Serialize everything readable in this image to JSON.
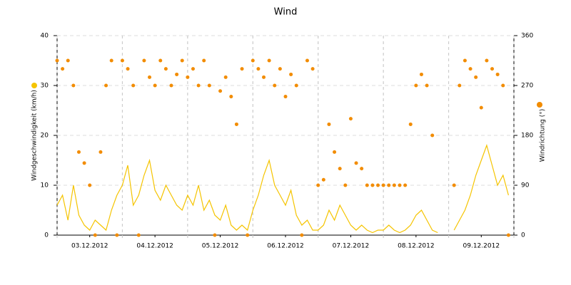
{
  "chart_data": {
    "type": "line_scatter",
    "title": "Wind",
    "ylabel": "Windgeschwindigkeit (km/h)",
    "y2label": "Windrichtung (°)",
    "x": [
      0,
      2,
      4,
      6,
      8,
      10,
      12,
      14,
      16,
      18,
      20,
      22,
      24,
      26,
      28,
      30,
      32,
      34,
      36,
      38,
      40,
      42,
      44,
      46,
      48,
      50,
      52,
      54,
      56,
      58,
      60,
      62,
      64,
      66,
      68,
      70,
      72,
      74,
      76,
      78,
      80,
      82,
      84,
      86,
      88,
      90,
      92,
      94,
      96,
      98,
      100,
      102,
      104,
      106,
      108,
      110,
      112,
      114,
      116,
      118,
      120,
      122,
      124,
      126,
      128,
      130,
      132,
      134,
      136,
      138,
      140,
      142,
      144,
      146,
      148,
      150,
      152,
      154,
      156,
      158,
      160,
      162,
      164,
      166
    ],
    "series": [
      {
        "name": "Windgeschwindigkeit (km/h)",
        "color": "#f5c400",
        "axis": "y",
        "values": [
          6,
          8,
          3,
          10,
          4,
          2,
          1,
          3,
          2,
          1,
          5,
          8,
          10,
          14,
          6,
          8,
          12,
          15,
          9,
          7,
          10,
          8,
          6,
          5,
          8,
          6,
          10,
          5,
          7,
          4,
          3,
          6,
          2,
          1,
          2,
          1,
          5,
          8,
          12,
          15,
          10,
          8,
          6,
          9,
          4,
          2,
          3,
          1,
          1,
          2,
          5,
          3,
          6,
          4,
          2,
          1,
          2,
          1,
          0.5,
          1,
          1,
          2,
          1,
          0.5,
          1,
          2,
          4,
          5,
          3,
          1,
          0.5,
          null,
          null,
          1,
          3,
          5,
          8,
          12,
          15,
          18,
          14,
          10,
          12,
          8
        ]
      },
      {
        "name": "Windrichtung (°)",
        "color": "#f28c00",
        "axis": "y2",
        "values": [
          315,
          300,
          315,
          270,
          150,
          130,
          90,
          0,
          150,
          270,
          315,
          0,
          315,
          300,
          270,
          0,
          315,
          285,
          270,
          315,
          300,
          270,
          290,
          315,
          285,
          300,
          270,
          315,
          270,
          0,
          260,
          285,
          250,
          200,
          300,
          0,
          315,
          300,
          285,
          315,
          270,
          300,
          250,
          290,
          270,
          0,
          315,
          300,
          90,
          100,
          200,
          150,
          120,
          90,
          210,
          130,
          120,
          90,
          90,
          90,
          90,
          90,
          90,
          90,
          90,
          200,
          270,
          290,
          270,
          180,
          null,
          null,
          null,
          90,
          270,
          315,
          300,
          285,
          230,
          315,
          300,
          290,
          270,
          0
        ]
      }
    ],
    "xlim": [
      0,
      168
    ],
    "xticks": [
      {
        "value": 12,
        "label": "03.12.2012"
      },
      {
        "value": 36,
        "label": "04.12.2012"
      },
      {
        "value": 60,
        "label": "05.12.2012"
      },
      {
        "value": 84,
        "label": "06.12.2012"
      },
      {
        "value": 108,
        "label": "07.12.2012"
      },
      {
        "value": 132,
        "label": "08.12.2012"
      },
      {
        "value": 156,
        "label": "09.12.2012"
      }
    ],
    "ylim": [
      0,
      40
    ],
    "yticks": [
      0,
      10,
      20,
      30,
      40
    ],
    "y2lim": [
      0,
      360
    ],
    "y2ticks": [
      0,
      90,
      180,
      270,
      360
    ],
    "grid": true
  }
}
